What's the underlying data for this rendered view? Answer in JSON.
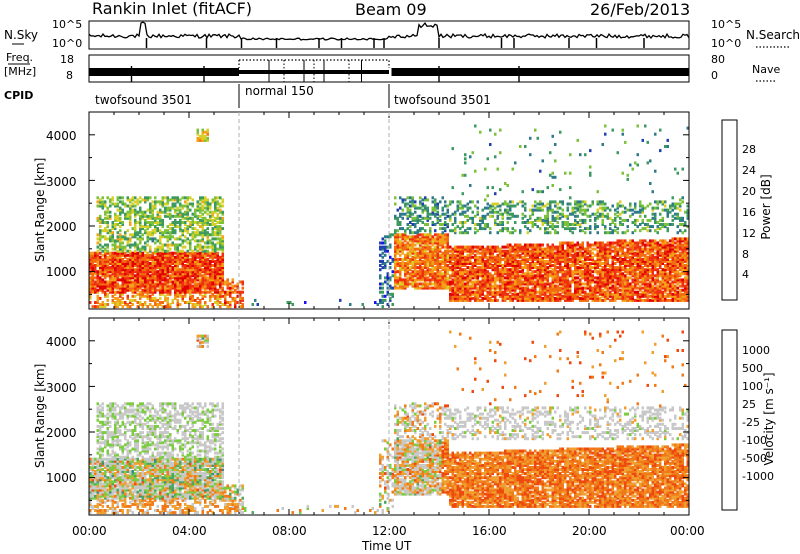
{
  "header": {
    "station": "Rankin Inlet (fitACF)",
    "beam": "Beam 09",
    "date": "26/Feb/2013"
  },
  "top_panels": {
    "nsky_label": "N.Sky",
    "nsky_ticks": [
      "10^5",
      "10^0"
    ],
    "nsearch_label": "N.Search",
    "nsearch_ticks": [
      "10^5",
      "10^0"
    ],
    "freq_label": "Freq.",
    "freq_unit": "[MHz]",
    "freq_ticks": [
      "18",
      "8"
    ],
    "nave_label": "Nave",
    "nave_ticks": [
      "80",
      "0"
    ],
    "cpid_label": "CPID",
    "modes": [
      {
        "label": "twofsound 3501",
        "start": 0,
        "end": 6
      },
      {
        "label": "normal 150",
        "start": 6,
        "end": 12
      },
      {
        "label": "twofsound 3501",
        "start": 12,
        "end": 24
      }
    ]
  },
  "chart_data": [
    {
      "type": "heatmap",
      "quantity": "Power",
      "ylabel": "Slant Range [km]",
      "ylim": [
        180,
        4500
      ],
      "yticks": [
        "1000",
        "2000",
        "3000",
        "4000"
      ],
      "xlim": [
        0,
        24
      ],
      "colorbar_label": "Power [dB]",
      "colorbar_ticks": [
        "4",
        "8",
        "12",
        "16",
        "20",
        "24",
        "28"
      ],
      "colorbar_colors": [
        "#1a10f0",
        "#2040b0",
        "#2e7a8a",
        "#3c9a60",
        "#7cc13a",
        "#d8d02a",
        "#f5a018",
        "#f26c10",
        "#ee3010",
        "#e00000"
      ]
    },
    {
      "type": "heatmap",
      "quantity": "Velocity",
      "ylabel": "Slant Range [km]",
      "ylim": [
        180,
        4500
      ],
      "yticks": [
        "1000",
        "2000",
        "3000",
        "4000"
      ],
      "xlim": [
        0,
        24
      ],
      "xlabel": "Time UT",
      "xticks": [
        "00:00",
        "04:00",
        "08:00",
        "12:00",
        "16:00",
        "20:00",
        "00:00"
      ],
      "colorbar_label": "Velocity [m s⁻¹]",
      "colorbar_ticks": [
        "1000",
        "500",
        "100",
        "25",
        "-25",
        "-100",
        "-500",
        "-1000"
      ],
      "colorbar_colors": [
        "#1040c0",
        "#2a62a8",
        "#3c8a80",
        "#4ca860",
        "#7ccc40",
        "#c8c8c8",
        "#c8c8c8",
        "#f0a030",
        "#f07a18",
        "#ee4a10",
        "#e01010"
      ]
    }
  ]
}
